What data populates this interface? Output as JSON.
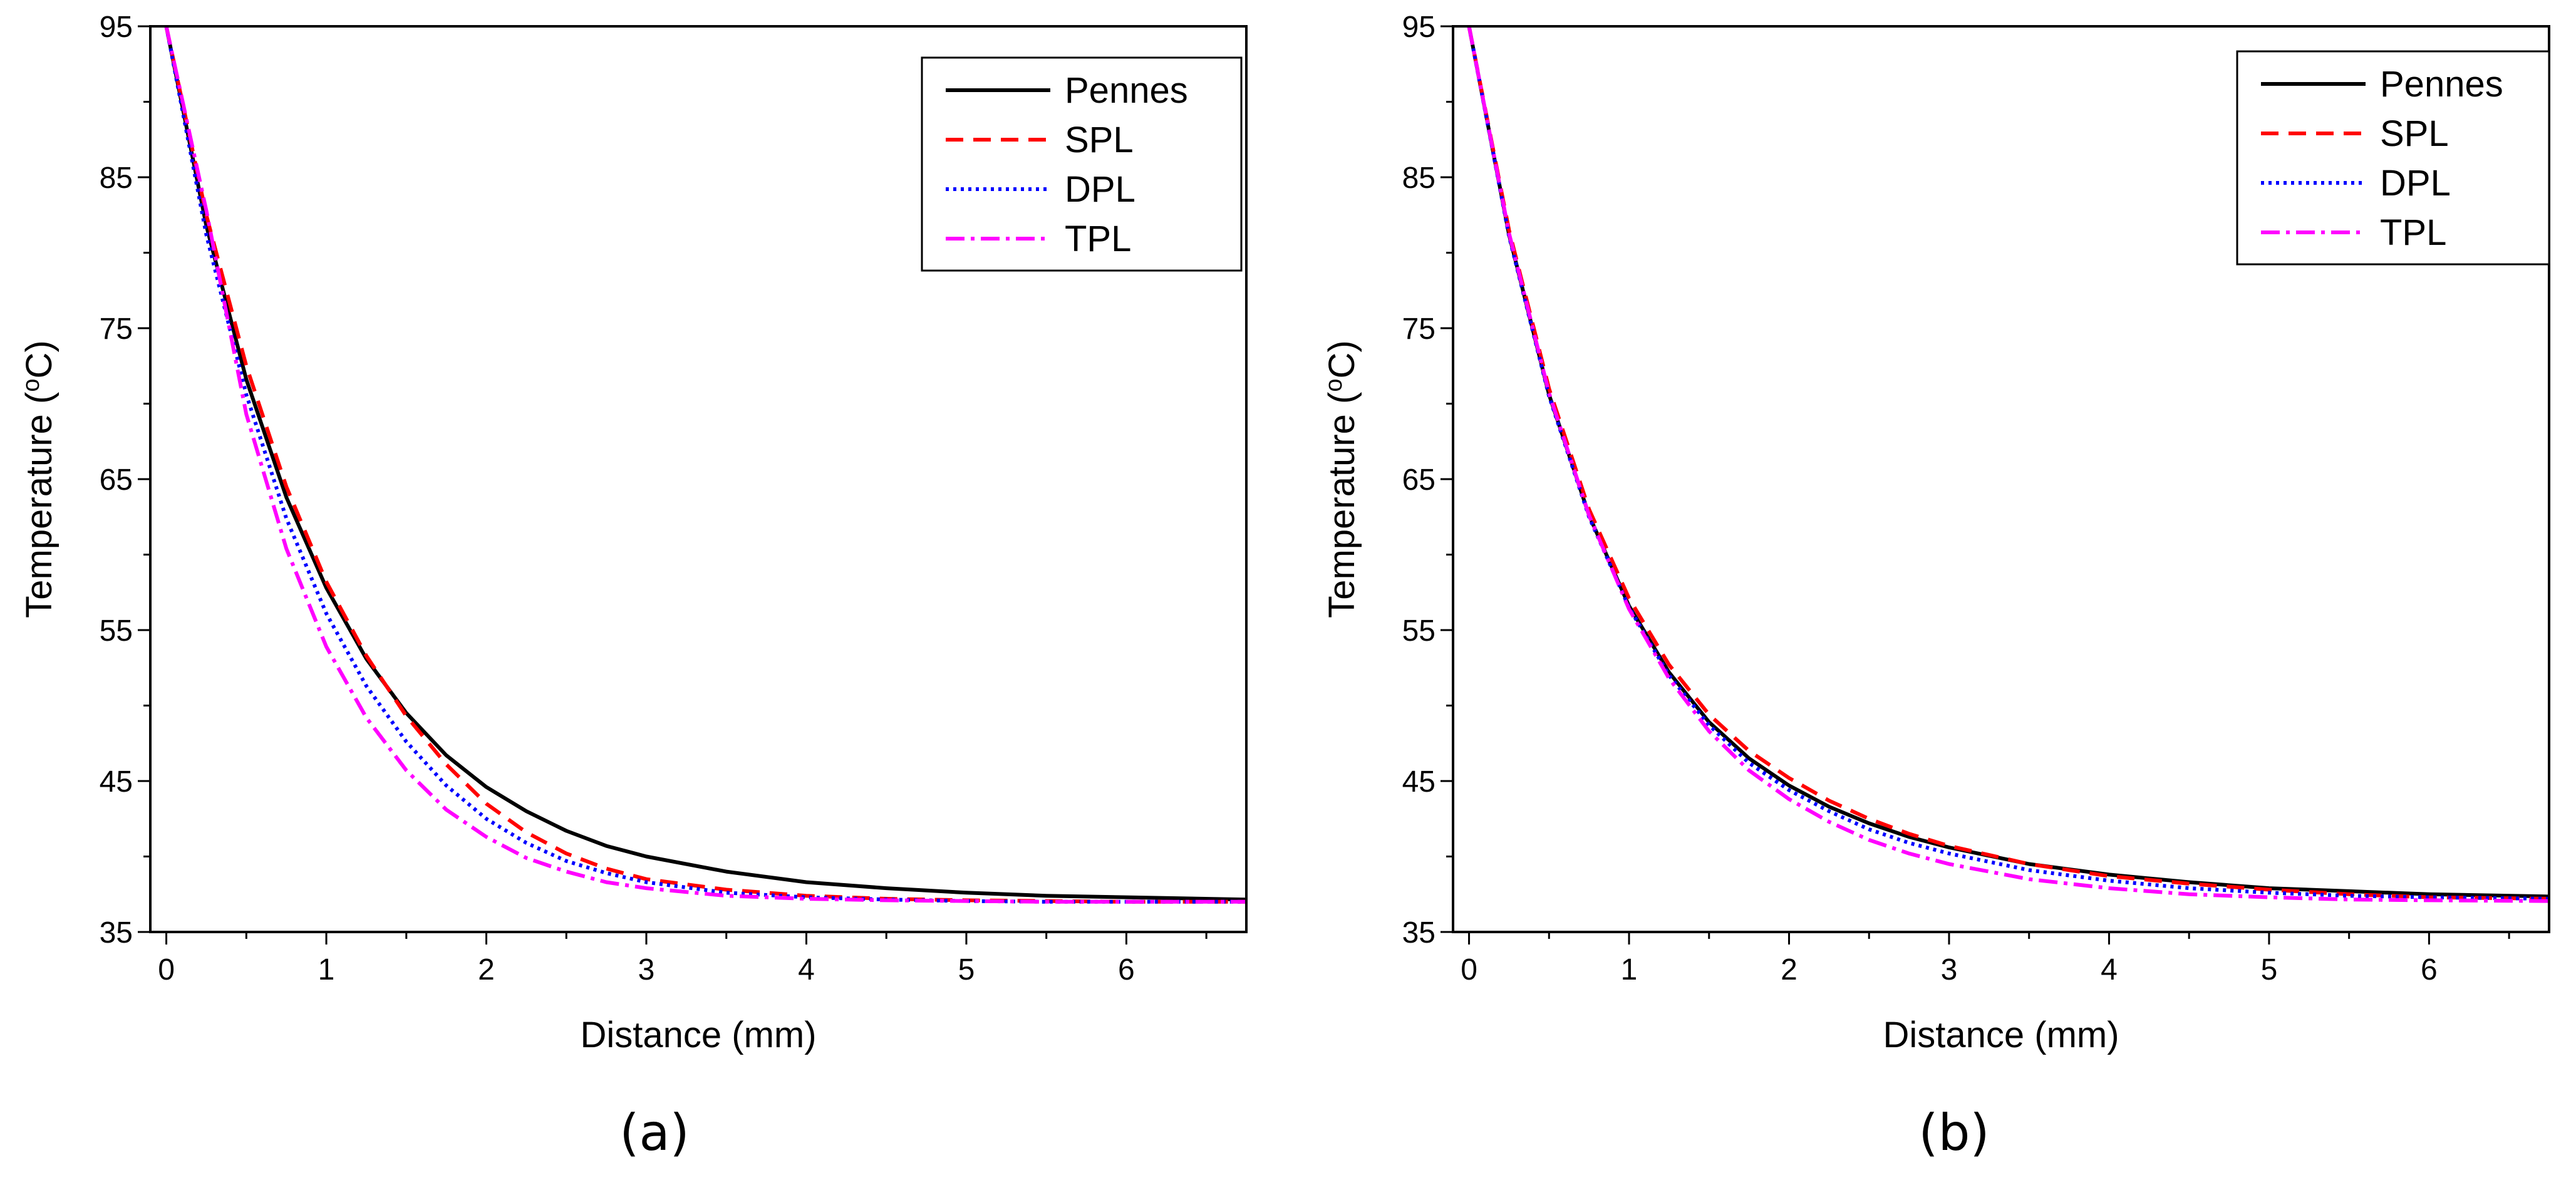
{
  "chart_data": [
    {
      "type": "line",
      "panel_label": "(a)",
      "xlabel": "Distance (mm)",
      "ylabel_main": "Temperature (",
      "ylabel_sup": "o",
      "ylabel_tail": "C)",
      "xlim": [
        -0.1,
        6.75
      ],
      "ylim": [
        35,
        95
      ],
      "xticks": [
        0,
        1,
        2,
        3,
        4,
        5,
        6
      ],
      "yticks": [
        35,
        45,
        55,
        65,
        75,
        85,
        95
      ],
      "legend_position": "top-right",
      "series": [
        {
          "name": "Pennes",
          "color": "#000000",
          "dash": "none",
          "x": [
            0,
            0.25,
            0.5,
            0.75,
            1.0,
            1.25,
            1.5,
            1.75,
            2.0,
            2.25,
            2.5,
            2.75,
            3.0,
            3.5,
            4.0,
            4.5,
            5.0,
            5.5,
            6.0,
            6.75
          ],
          "y": [
            95,
            81.8,
            71.6,
            63.8,
            57.8,
            53.1,
            49.5,
            46.7,
            44.6,
            43.0,
            41.7,
            40.7,
            40.0,
            39.0,
            38.3,
            37.9,
            37.6,
            37.4,
            37.3,
            37.15
          ]
        },
        {
          "name": "SPL",
          "color": "#ff0000",
          "dash": "28,16",
          "x": [
            0,
            0.25,
            0.5,
            0.75,
            1.0,
            1.25,
            1.5,
            1.75,
            2.0,
            2.25,
            2.5,
            2.75,
            3.0,
            3.5,
            4.0,
            4.5,
            5.0,
            5.5,
            6.0,
            6.75
          ],
          "y": [
            95,
            82.5,
            72.5,
            64.5,
            58.2,
            53.3,
            49.3,
            46.1,
            43.5,
            41.6,
            40.2,
            39.2,
            38.5,
            37.8,
            37.4,
            37.2,
            37.1,
            37.05,
            37.0,
            37.0
          ]
        },
        {
          "name": "DPL",
          "color": "#0000ff",
          "dash": "5,7",
          "x": [
            0,
            0.25,
            0.5,
            0.75,
            1.0,
            1.25,
            1.5,
            1.75,
            2.0,
            2.25,
            2.5,
            2.75,
            3.0,
            3.5,
            4.0,
            4.5,
            5.0,
            5.5,
            6.0,
            6.75
          ],
          "y": [
            95,
            81.2,
            70.6,
            62.4,
            56.1,
            51.3,
            47.6,
            44.7,
            42.5,
            40.9,
            39.7,
            38.9,
            38.3,
            37.6,
            37.3,
            37.15,
            37.05,
            37.0,
            37.0,
            37.0
          ]
        },
        {
          "name": "TPL",
          "color": "#ff00ff",
          "dash": "30,10,6,10",
          "x": [
            0,
            0.25,
            0.5,
            0.75,
            1.0,
            1.25,
            1.5,
            1.75,
            2.0,
            2.25,
            2.5,
            2.75,
            3.0,
            3.5,
            4.0,
            4.5,
            5.0,
            5.5,
            6.0,
            6.75
          ],
          "y": [
            95,
            82.8,
            69.3,
            60.4,
            53.9,
            49.2,
            45.7,
            43.1,
            41.3,
            39.9,
            39.0,
            38.3,
            37.9,
            37.4,
            37.2,
            37.1,
            37.05,
            37.0,
            37.0,
            37.0
          ]
        }
      ]
    },
    {
      "type": "line",
      "panel_label": "(b)",
      "xlabel": "Distance (mm)",
      "ylabel_main": "Temperature (",
      "ylabel_sup": "o",
      "ylabel_tail": "C)",
      "xlim": [
        -0.1,
        6.75
      ],
      "ylim": [
        35,
        95
      ],
      "xticks": [
        0,
        1,
        2,
        3,
        4,
        5,
        6
      ],
      "yticks": [
        35,
        45,
        55,
        65,
        75,
        85,
        95
      ],
      "legend_position": "top-right",
      "series": [
        {
          "name": "Pennes",
          "color": "#000000",
          "dash": "none",
          "x": [
            0,
            0.25,
            0.5,
            0.75,
            1.0,
            1.25,
            1.5,
            1.75,
            2.0,
            2.25,
            2.5,
            2.75,
            3.0,
            3.5,
            4.0,
            4.5,
            5.0,
            5.5,
            6.0,
            6.75
          ],
          "y": [
            95,
            81.2,
            70.6,
            62.6,
            56.6,
            52.2,
            48.9,
            46.5,
            44.7,
            43.3,
            42.2,
            41.3,
            40.6,
            39.5,
            38.8,
            38.3,
            37.9,
            37.7,
            37.5,
            37.35
          ]
        },
        {
          "name": "SPL",
          "color": "#ff0000",
          "dash": "28,16",
          "x": [
            0,
            0.25,
            0.5,
            0.75,
            1.0,
            1.25,
            1.5,
            1.75,
            2.0,
            2.25,
            2.5,
            2.75,
            3.0,
            3.5,
            4.0,
            4.5,
            5.0,
            5.5,
            6.0,
            6.75
          ],
          "y": [
            95,
            81.5,
            71.0,
            63.0,
            57.1,
            52.7,
            49.4,
            47.0,
            45.2,
            43.7,
            42.5,
            41.5,
            40.7,
            39.5,
            38.7,
            38.2,
            37.8,
            37.5,
            37.3,
            37.2
          ]
        },
        {
          "name": "DPL",
          "color": "#0000ff",
          "dash": "5,7",
          "x": [
            0,
            0.25,
            0.5,
            0.75,
            1.0,
            1.25,
            1.5,
            1.75,
            2.0,
            2.25,
            2.5,
            2.75,
            3.0,
            3.5,
            4.0,
            4.5,
            5.0,
            5.5,
            6.0,
            6.75
          ],
          "y": [
            95,
            81.1,
            70.5,
            62.5,
            56.5,
            52.0,
            48.7,
            46.2,
            44.4,
            43.0,
            41.8,
            40.9,
            40.2,
            39.1,
            38.4,
            37.9,
            37.6,
            37.4,
            37.3,
            37.2
          ]
        },
        {
          "name": "TPL",
          "color": "#ff00ff",
          "dash": "30,10,6,10",
          "x": [
            0,
            0.25,
            0.5,
            0.75,
            1.0,
            1.25,
            1.5,
            1.75,
            2.0,
            2.25,
            2.5,
            2.75,
            3.0,
            3.5,
            4.0,
            4.5,
            5.0,
            5.5,
            6.0,
            6.75
          ],
          "y": [
            95,
            81.3,
            70.7,
            62.6,
            56.4,
            51.8,
            48.3,
            45.7,
            43.8,
            42.3,
            41.1,
            40.2,
            39.5,
            38.5,
            37.9,
            37.5,
            37.3,
            37.15,
            37.1,
            37.05
          ]
        }
      ]
    }
  ]
}
